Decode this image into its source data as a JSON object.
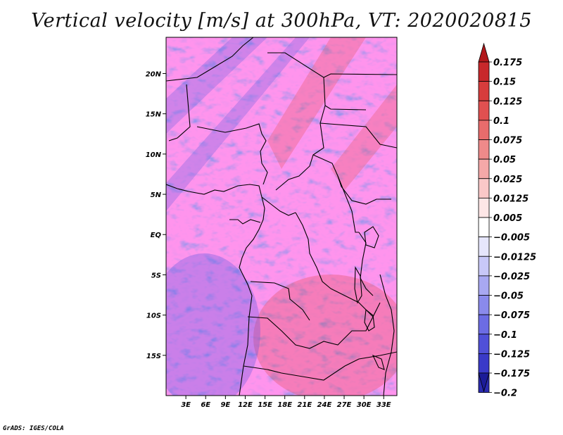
{
  "title": "Vertical velocity [m/s] at 300hPa, VT: 2020020815",
  "credit": "GrADS: IGES/COLA",
  "map": {
    "projection": "latlon",
    "lon_range": [
      0,
      35
    ],
    "lat_range": [
      -20,
      24.5
    ],
    "lat_ticks": [
      {
        "value": 20,
        "label": "20N"
      },
      {
        "value": 15,
        "label": "15N"
      },
      {
        "value": 10,
        "label": "10N"
      },
      {
        "value": 5,
        "label": "5N"
      },
      {
        "value": 0,
        "label": "EQ"
      },
      {
        "value": -5,
        "label": "5S"
      },
      {
        "value": -10,
        "label": "10S"
      },
      {
        "value": -15,
        "label": "15S"
      }
    ],
    "lon_ticks": [
      {
        "value": 3,
        "label": "3E"
      },
      {
        "value": 6,
        "label": "6E"
      },
      {
        "value": 9,
        "label": "9E"
      },
      {
        "value": 12,
        "label": "12E"
      },
      {
        "value": 15,
        "label": "15E"
      },
      {
        "value": 18,
        "label": "18E"
      },
      {
        "value": 21,
        "label": "21E"
      },
      {
        "value": 24,
        "label": "24E"
      },
      {
        "value": 27,
        "label": "27E"
      },
      {
        "value": 30,
        "label": "30E"
      },
      {
        "value": 33,
        "label": "33E"
      }
    ],
    "field": "vertical velocity, shaded: red = positive, blue = negative"
  },
  "colorbar": {
    "levels": [
      "0.175",
      "0.15",
      "0.125",
      "0.1",
      "0.075",
      "0.05",
      "0.025",
      "0.0125",
      "0.005",
      "−0.005",
      "−0.0125",
      "−0.025",
      "−0.05",
      "−0.075",
      "−0.1",
      "−0.125",
      "−0.175",
      "−0.2"
    ],
    "colors": [
      "#b2181b",
      "#c8282b",
      "#d73c3c",
      "#e05050",
      "#e86c6c",
      "#ef8a8a",
      "#f5a8a8",
      "#fac8c8",
      "#fde6e6",
      "#ffffff",
      "#e6e6fc",
      "#c8c8f8",
      "#a8a8f2",
      "#8a8aec",
      "#6c6ce4",
      "#5050d8",
      "#3a3ac8",
      "#2a2ab0",
      "#1c1c98"
    ]
  }
}
